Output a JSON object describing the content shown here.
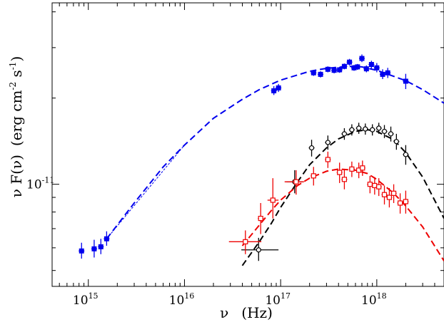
{
  "chart_data": {
    "type": "scatter",
    "title": "",
    "xlabel": {
      "symbol": "ν",
      "unit": "(Hz)"
    },
    "ylabel": {
      "main": "ν F(ν)",
      "unit_base": "(erg cm",
      "unit_exp1": "-2",
      "unit_mid": " s",
      "unit_exp2": "-1",
      "unit_close": ")"
    },
    "x_log": true,
    "y_log": true,
    "xlim": [
      420000000000000.0,
      5e+18
    ],
    "ylim": [
      4.4e-12,
      4.3e-11
    ],
    "x_ticks": [
      {
        "value": 1000000000000000.0,
        "base": "10",
        "exp": "15"
      },
      {
        "value": 1e+16,
        "base": "10",
        "exp": "16"
      },
      {
        "value": 1e+17,
        "base": "10",
        "exp": "17"
      },
      {
        "value": 1e+18,
        "base": "10",
        "exp": "18"
      }
    ],
    "y_ticks": [
      {
        "value": 1e-11,
        "base": "10",
        "exp": "-11"
      }
    ],
    "series": [
      {
        "color": "#0000ee",
        "marker": "filled-square",
        "points": [
          {
            "x": 850000000000000.0,
            "y": 5.85e-12,
            "ylo": 5.5e-12,
            "yhi": 6.25e-12
          },
          {
            "x": 1150000000000000.0,
            "y": 5.95e-12,
            "ylo": 5.55e-12,
            "yhi": 6.4e-12
          },
          {
            "x": 1350000000000000.0,
            "y": 6.05e-12,
            "ylo": 5.7e-12,
            "yhi": 6.45e-12
          },
          {
            "x": 1550000000000000.0,
            "y": 6.45e-12,
            "ylo": 6.1e-12,
            "yhi": 6.85e-12
          },
          {
            "x": 8.5e+16,
            "y": 2.12e-11,
            "ylo": 2.05e-11,
            "yhi": 2.2e-11
          },
          {
            "x": 9.5e+16,
            "y": 2.17e-11,
            "ylo": 2.1e-11,
            "yhi": 2.24e-11
          },
          {
            "x": 2.2e+17,
            "y": 2.45e-11,
            "ylo": 2.39e-11,
            "yhi": 2.51e-11
          },
          {
            "x": 2.6e+17,
            "y": 2.42e-11,
            "ylo": 2.36e-11,
            "yhi": 2.48e-11
          },
          {
            "x": 3.1e+17,
            "y": 2.52e-11,
            "ylo": 2.46e-11,
            "yhi": 2.58e-11
          },
          {
            "x": 3.6e+17,
            "y": 2.5e-11,
            "ylo": 2.44e-11,
            "yhi": 2.56e-11
          },
          {
            "x": 4.1e+17,
            "y": 2.51e-11,
            "ylo": 2.45e-11,
            "yhi": 2.57e-11
          },
          {
            "x": 4.6e+17,
            "y": 2.58e-11,
            "ylo": 2.52e-11,
            "yhi": 2.64e-11
          },
          {
            "x": 5.2e+17,
            "y": 2.67e-11,
            "ylo": 2.6e-11,
            "yhi": 2.74e-11
          },
          {
            "x": 5.8e+17,
            "y": 2.55e-11,
            "ylo": 2.49e-11,
            "yhi": 2.61e-11
          },
          {
            "x": 6.3e+17,
            "y": 2.57e-11,
            "ylo": 2.51e-11,
            "yhi": 2.63e-11
          },
          {
            "x": 7e+17,
            "y": 2.75e-11,
            "ylo": 2.67e-11,
            "yhi": 2.84e-11
          },
          {
            "x": 7.8e+17,
            "y": 2.53e-11,
            "ylo": 2.46e-11,
            "yhi": 2.6e-11
          },
          {
            "x": 8.8e+17,
            "y": 2.62e-11,
            "ylo": 2.54e-11,
            "yhi": 2.7e-11
          },
          {
            "x": 1e+18,
            "y": 2.55e-11,
            "ylo": 2.46e-11,
            "yhi": 2.65e-11
          },
          {
            "x": 1.15e+18,
            "y": 2.42e-11,
            "ylo": 2.33e-11,
            "yhi": 2.52e-11
          },
          {
            "x": 1.3e+18,
            "y": 2.45e-11,
            "ylo": 2.35e-11,
            "yhi": 2.55e-11
          },
          {
            "x": 2e+18,
            "y": 2.29e-11,
            "ylo": 2.15e-11,
            "yhi": 2.43e-11
          }
        ]
      },
      {
        "color": "#000000",
        "marker": "open-circle",
        "points": [
          {
            "x": 5.9e+16,
            "y": 5.9e-12,
            "ylo": 5.4e-12,
            "yhi": 6.5e-12,
            "xlo": 3.9e+16,
            "xhi": 9.5e+16
          },
          {
            "x": 1.4e+17,
            "y": 1.02e-11,
            "ylo": 9.3e-12,
            "yhi": 1.12e-11,
            "xlo": 1.15e+17,
            "xhi": 1.7e+17
          },
          {
            "x": 2.1e+17,
            "y": 1.34e-11,
            "ylo": 1.25e-11,
            "yhi": 1.43e-11
          },
          {
            "x": 3.1e+17,
            "y": 1.4e-11,
            "ylo": 1.32e-11,
            "yhi": 1.48e-11
          },
          {
            "x": 4.6e+17,
            "y": 1.5e-11,
            "ylo": 1.43e-11,
            "yhi": 1.57e-11
          },
          {
            "x": 5.5e+17,
            "y": 1.55e-11,
            "ylo": 1.48e-11,
            "yhi": 1.62e-11
          },
          {
            "x": 6.5e+17,
            "y": 1.57e-11,
            "ylo": 1.5e-11,
            "yhi": 1.64e-11
          },
          {
            "x": 7.6e+17,
            "y": 1.56e-11,
            "ylo": 1.49e-11,
            "yhi": 1.63e-11
          },
          {
            "x": 9e+17,
            "y": 1.55e-11,
            "ylo": 1.48e-11,
            "yhi": 1.62e-11
          },
          {
            "x": 1.05e+18,
            "y": 1.57e-11,
            "ylo": 1.5e-11,
            "yhi": 1.64e-11
          },
          {
            "x": 1.2e+18,
            "y": 1.53e-11,
            "ylo": 1.45e-11,
            "yhi": 1.61e-11
          },
          {
            "x": 1.4e+18,
            "y": 1.5e-11,
            "ylo": 1.41e-11,
            "yhi": 1.59e-11
          },
          {
            "x": 1.6e+18,
            "y": 1.41e-11,
            "ylo": 1.32e-11,
            "yhi": 1.5e-11
          },
          {
            "x": 2e+18,
            "y": 1.27e-11,
            "ylo": 1.17e-11,
            "yhi": 1.37e-11
          }
        ]
      },
      {
        "color": "#ee0000",
        "marker": "open-square",
        "points": [
          {
            "x": 4.3e+16,
            "y": 6.3e-12,
            "ylo": 5.7e-12,
            "yhi": 6.9e-12,
            "xlo": 2.9e+16,
            "xhi": 6.3e+16
          },
          {
            "x": 6.2e+16,
            "y": 7.6e-12,
            "ylo": 6.7e-12,
            "yhi": 8.6e-12
          },
          {
            "x": 8.3e+16,
            "y": 8.8e-12,
            "ylo": 7.6e-12,
            "yhi": 1.05e-11,
            "xlo": 7.3e+16,
            "xhi": 9.5e+16
          },
          {
            "x": 1.45e+17,
            "y": 1.02e-11,
            "ylo": 9.2e-12,
            "yhi": 1.12e-11,
            "xlo": 1.1e+17,
            "xhi": 1.75e+17
          },
          {
            "x": 2.2e+17,
            "y": 1.07e-11,
            "ylo": 9.9e-12,
            "yhi": 1.15e-11
          },
          {
            "x": 3.1e+17,
            "y": 1.22e-11,
            "ylo": 1.14e-11,
            "yhi": 1.3e-11
          },
          {
            "x": 4.1e+17,
            "y": 1.1e-11,
            "ylo": 1.01e-11,
            "yhi": 1.19e-11
          },
          {
            "x": 4.6e+17,
            "y": 1.04e-11,
            "ylo": 9.6e-12,
            "yhi": 1.13e-11
          },
          {
            "x": 5.5e+17,
            "y": 1.13e-11,
            "ylo": 1.06e-11,
            "yhi": 1.2e-11
          },
          {
            "x": 6.5e+17,
            "y": 1.12e-11,
            "ylo": 1.05e-11,
            "yhi": 1.19e-11
          },
          {
            "x": 7.1e+17,
            "y": 1.14e-11,
            "ylo": 1.07e-11,
            "yhi": 1.21e-11
          },
          {
            "x": 8.5e+17,
            "y": 1e-11,
            "ylo": 9.3e-12,
            "yhi": 1.07e-11
          },
          {
            "x": 9.5e+17,
            "y": 9.9e-12,
            "ylo": 9.2e-12,
            "yhi": 1.06e-11
          },
          {
            "x": 1.05e+18,
            "y": 9.8e-12,
            "ylo": 9.1e-12,
            "yhi": 1.05e-11
          },
          {
            "x": 1.2e+18,
            "y": 9.2e-12,
            "ylo": 8.5e-12,
            "yhi": 9.9e-12
          },
          {
            "x": 1.35e+18,
            "y": 9e-12,
            "ylo": 8.3e-12,
            "yhi": 9.7e-12
          },
          {
            "x": 1.5e+18,
            "y": 9.3e-12,
            "ylo": 8.6e-12,
            "yhi": 1e-11
          },
          {
            "x": 1.75e+18,
            "y": 8.6e-12,
            "ylo": 7.9e-12,
            "yhi": 9.3e-12
          },
          {
            "x": 2e+18,
            "y": 8.7e-12,
            "ylo": 7.9e-12,
            "yhi": 9.5e-12
          }
        ]
      }
    ],
    "model_curves": [
      {
        "color": "#0000ee",
        "style": "dashed",
        "points": [
          [
            1550000000000000.0,
            6.45e-12
          ],
          [
            3000000000000000.0,
            8.6e-12
          ],
          [
            6000000000000000.0,
            1.15e-11
          ],
          [
            1e+16,
            1.37e-11
          ],
          [
            2e+16,
            1.7e-11
          ],
          [
            4e+16,
            1.98e-11
          ],
          [
            6e+16,
            2.14e-11
          ],
          [
            1e+17,
            2.31e-11
          ],
          [
            2e+17,
            2.48e-11
          ],
          [
            3e+17,
            2.54e-11
          ],
          [
            5e+17,
            2.58e-11
          ],
          [
            7e+17,
            2.57e-11
          ],
          [
            1e+18,
            2.5e-11
          ],
          [
            2e+18,
            2.3e-11
          ],
          [
            3e+18,
            2.14e-11
          ],
          [
            5e+18,
            1.92e-11
          ]
        ]
      },
      {
        "color": "#000000",
        "style": "dashed",
        "points": [
          [
            4e+16,
            5.2e-12
          ],
          [
            6e+16,
            6.3e-12
          ],
          [
            8e+16,
            7.3e-12
          ],
          [
            1e+17,
            8.3e-12
          ],
          [
            1.5e+17,
            1.02e-11
          ],
          [
            2e+17,
            1.17e-11
          ],
          [
            3e+17,
            1.34e-11
          ],
          [
            4e+17,
            1.44e-11
          ],
          [
            6e+17,
            1.53e-11
          ],
          [
            8e+17,
            1.55e-11
          ],
          [
            1e+18,
            1.53e-11
          ],
          [
            1.5e+18,
            1.43e-11
          ],
          [
            2e+18,
            1.29e-11
          ],
          [
            3e+18,
            1.06e-11
          ],
          [
            5e+18,
            7.6e-12
          ]
        ]
      },
      {
        "color": "#ee0000",
        "style": "dashed",
        "points": [
          [
            4e+16,
            6.1e-12
          ],
          [
            6e+16,
            7.2e-12
          ],
          [
            8e+16,
            8.1e-12
          ],
          [
            1e+17,
            8.8e-12
          ],
          [
            1.5e+17,
            9.9e-12
          ],
          [
            2e+17,
            1.05e-11
          ],
          [
            3e+17,
            1.11e-11
          ],
          [
            4e+17,
            1.13e-11
          ],
          [
            6e+17,
            1.12e-11
          ],
          [
            8e+17,
            1.09e-11
          ],
          [
            1e+18,
            1.04e-11
          ],
          [
            1.5e+18,
            9.3e-12
          ],
          [
            2e+18,
            8.4e-12
          ],
          [
            3e+18,
            7.1e-12
          ],
          [
            5e+18,
            5.4e-12
          ]
        ]
      }
    ],
    "model_extension": {
      "color": "#0000ee",
      "style": "fine-dashed",
      "points": [
        [
          1550000000000000.0,
          6.45e-12
        ],
        [
          1e+16,
          1.37e-11
        ]
      ]
    }
  }
}
